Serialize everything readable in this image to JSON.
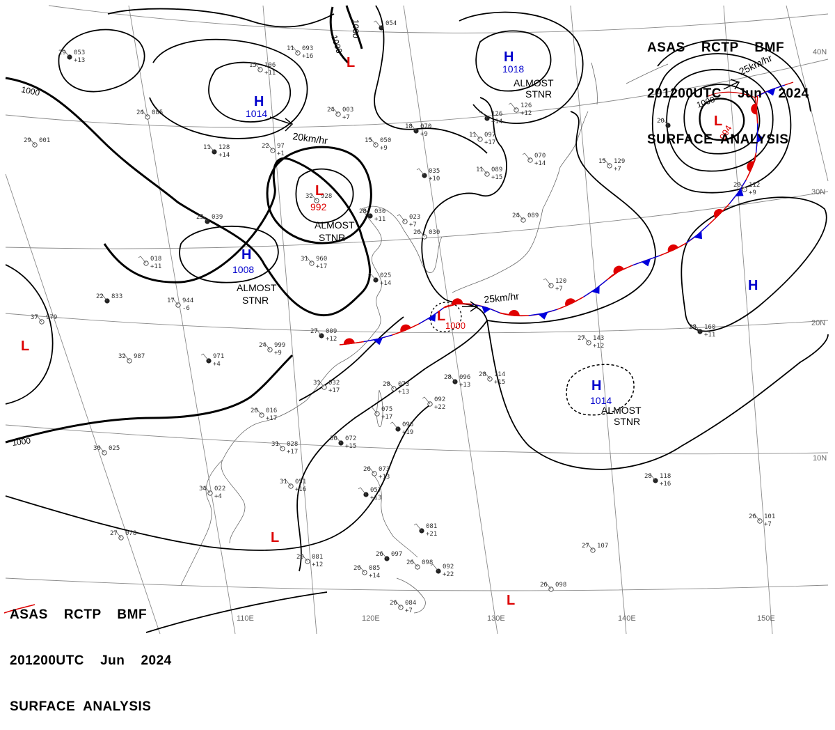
{
  "header_top": {
    "line1": "ASAS    RCTP    BMF",
    "line2": "201200UTC    Jun    2024",
    "line3": "SURFACE  ANALYSIS"
  },
  "header_bottom": {
    "line1": "ASAS    RCTP    BMF",
    "line2": "201200UTC    Jun    2024",
    "line3": "SURFACE  ANALYSIS"
  },
  "colors": {
    "high": "#0000cc",
    "low": "#dd0000",
    "warm_front": "#e00000",
    "cold_front": "#0000dd",
    "isobar": "#000000",
    "grid": "#8a8a8a",
    "coast": "#6a6a6a"
  },
  "grid_labels": {
    "lon": [
      "110E",
      "120E",
      "130E",
      "140E",
      "150E"
    ],
    "lat": [
      "40N",
      "30N",
      "20N",
      "10N"
    ]
  },
  "isobar_labels": [
    "1000",
    "1000",
    "1000",
    "1000",
    "1000",
    "1000"
  ],
  "pressure_systems": [
    {
      "type": "H",
      "value": "1014",
      "note": ""
    },
    {
      "type": "H",
      "value": "1018",
      "note": "ALMOST\nSTNR"
    },
    {
      "type": "L",
      "value": "",
      "note": ""
    },
    {
      "type": "L",
      "value": "992",
      "note": "ALMOST\nSTNR"
    },
    {
      "type": "H",
      "value": "1008",
      "note": "ALMOST\nSTNR"
    },
    {
      "type": "L",
      "value": "994",
      "note": ""
    },
    {
      "type": "L",
      "value": "1000",
      "note": ""
    },
    {
      "type": "H",
      "value": "",
      "note": ""
    },
    {
      "type": "H",
      "value": "1014",
      "note": "ALMOST\nSTNR"
    },
    {
      "type": "L",
      "value": "",
      "note": ""
    },
    {
      "type": "L",
      "value": "",
      "note": ""
    },
    {
      "type": "L",
      "value": "",
      "note": ""
    }
  ],
  "motion_labels": [
    "20km/hr",
    "25km/hr",
    "25km/hr"
  ],
  "stations": [
    {
      "t": "29",
      "p": "053",
      "d": "+13"
    },
    {
      "t": "11",
      "p": "093",
      "d": "+16"
    },
    {
      "t": "15",
      "p": "106",
      "d": "+11"
    },
    {
      "t": "",
      "p": "054",
      "d": ""
    },
    {
      "t": "24",
      "p": "085",
      "d": ""
    },
    {
      "t": "24",
      "p": "003",
      "d": "+7"
    },
    {
      "t": "11",
      "p": "128",
      "d": "+14"
    },
    {
      "t": "29",
      "p": "001",
      "d": ""
    },
    {
      "t": "22",
      "p": "97",
      "d": "+1"
    },
    {
      "t": "18",
      "p": "070",
      "d": "+9"
    },
    {
      "t": "15",
      "p": "050",
      "d": "+9"
    },
    {
      "t": "11",
      "p": "097",
      "d": "+17"
    },
    {
      "t": "",
      "p": "126",
      "d": "+14"
    },
    {
      "t": "",
      "p": "126",
      "d": "+12"
    },
    {
      "t": "11",
      "p": "089",
      "d": "+15"
    },
    {
      "t": "",
      "p": "035",
      "d": "+10"
    },
    {
      "t": "",
      "p": "070",
      "d": "+14"
    },
    {
      "t": "15",
      "p": "129",
      "d": "+7"
    },
    {
      "t": "20",
      "p": "",
      "d": ""
    },
    {
      "t": "20",
      "p": "112",
      "d": "+9"
    },
    {
      "t": "32",
      "p": "928",
      "d": ""
    },
    {
      "t": "28",
      "p": "030",
      "d": "+11"
    },
    {
      "t": "",
      "p": "023",
      "d": "+7"
    },
    {
      "t": "26",
      "p": "030",
      "d": ""
    },
    {
      "t": "25",
      "p": "039",
      "d": ""
    },
    {
      "t": "",
      "p": "018",
      "d": "+11"
    },
    {
      "t": "31",
      "p": "960",
      "d": "+17"
    },
    {
      "t": "",
      "p": "025",
      "d": "+14"
    },
    {
      "t": "24",
      "p": "089",
      "d": ""
    },
    {
      "t": "",
      "p": "120",
      "d": "+7"
    },
    {
      "t": "22",
      "p": "833",
      "d": ""
    },
    {
      "t": "17",
      "p": "944",
      "d": "-6"
    },
    {
      "t": "37",
      "p": "979",
      "d": ""
    },
    {
      "t": "27",
      "p": "009",
      "d": "+12"
    },
    {
      "t": "24",
      "p": "999",
      "d": "+9"
    },
    {
      "t": "32",
      "p": "987",
      "d": ""
    },
    {
      "t": "",
      "p": "971",
      "d": "+4"
    },
    {
      "t": "31",
      "p": "032",
      "d": "+17"
    },
    {
      "t": "28",
      "p": "073",
      "d": "+13"
    },
    {
      "t": "28",
      "p": "096",
      "d": "+13"
    },
    {
      "t": "28",
      "p": "114",
      "d": "+15"
    },
    {
      "t": "27",
      "p": "143",
      "d": "+12"
    },
    {
      "t": "28",
      "p": "160",
      "d": "+11"
    },
    {
      "t": "",
      "p": "092",
      "d": "+22"
    },
    {
      "t": "",
      "p": "075",
      "d": "+17"
    },
    {
      "t": "",
      "p": "096",
      "d": "+19"
    },
    {
      "t": "28",
      "p": "016",
      "d": "+17"
    },
    {
      "t": "30",
      "p": "025",
      "d": ""
    },
    {
      "t": "30",
      "p": "072",
      "d": "+15"
    },
    {
      "t": "31",
      "p": "028",
      "d": "+17"
    },
    {
      "t": "26",
      "p": "073",
      "d": "+13"
    },
    {
      "t": "",
      "p": "057",
      "d": "+13"
    },
    {
      "t": "31",
      "p": "051",
      "d": "+16"
    },
    {
      "t": "34",
      "p": "022",
      "d": "+4"
    },
    {
      "t": "28",
      "p": "118",
      "d": "+16"
    },
    {
      "t": "27",
      "p": "078",
      "d": ""
    },
    {
      "t": "26",
      "p": "101",
      "d": "+7"
    },
    {
      "t": "",
      "p": "081",
      "d": "+21"
    },
    {
      "t": "27",
      "p": "107",
      "d": ""
    },
    {
      "t": "29",
      "p": "081",
      "d": "+12"
    },
    {
      "t": "26",
      "p": "097",
      "d": ""
    },
    {
      "t": "26",
      "p": "085",
      "d": "+14"
    },
    {
      "t": "26",
      "p": "098",
      "d": ""
    },
    {
      "t": "",
      "p": "092",
      "d": "+22"
    },
    {
      "t": "26",
      "p": "098",
      "d": ""
    },
    {
      "t": "26",
      "p": "084",
      "d": "+7"
    }
  ]
}
